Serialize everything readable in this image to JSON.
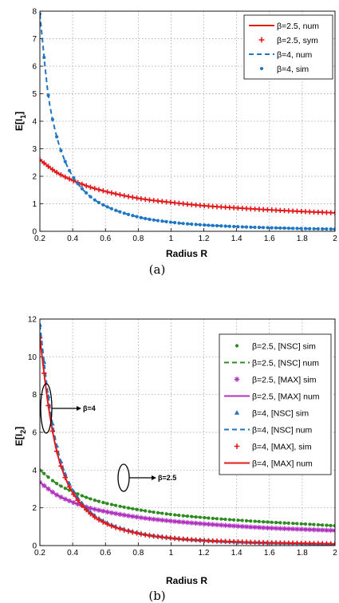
{
  "chart_data": [
    {
      "type": "line",
      "caption": "(a)",
      "ylabel": "E[I",
      "ylabel_sub": "1",
      "ylabel_close": "]",
      "xlabel": "Radius R",
      "xlim": [
        0.2,
        2
      ],
      "ylim": [
        0,
        8
      ],
      "xticks": [
        "0.2",
        "0.4",
        "0.6",
        "0.8",
        "1",
        "1.2",
        "1.4",
        "1.6",
        "1.8",
        "2"
      ],
      "yticks": [
        "0",
        "1",
        "2",
        "3",
        "4",
        "5",
        "6",
        "7",
        "8"
      ],
      "grid": true,
      "legend_position": "top-right",
      "series": [
        {
          "name": "β=2.5, num",
          "color": "#e31a1c",
          "style": "line",
          "x": [
            0.2,
            0.3,
            0.4,
            0.5,
            0.6,
            0.8,
            1.0,
            1.2,
            1.4,
            1.6,
            1.8,
            2.0
          ],
          "y": [
            2.6,
            2.15,
            1.85,
            1.62,
            1.45,
            1.2,
            1.05,
            0.93,
            0.85,
            0.78,
            0.72,
            0.67
          ]
        },
        {
          "name": "β=2.5, sym",
          "color": "#e31a1c",
          "style": "plus",
          "x": [
            0.2,
            0.3,
            0.4,
            0.5,
            0.6,
            0.8,
            1.0,
            1.2,
            1.4,
            1.6,
            1.8,
            2.0
          ],
          "y": [
            2.6,
            2.15,
            1.85,
            1.62,
            1.45,
            1.2,
            1.05,
            0.93,
            0.85,
            0.78,
            0.72,
            0.67
          ]
        },
        {
          "name": "β=4, num",
          "color": "#1f77c4",
          "style": "dashed",
          "x": [
            0.2,
            0.25,
            0.3,
            0.35,
            0.4,
            0.5,
            0.6,
            0.8,
            1.0,
            1.2,
            1.4,
            1.6,
            1.8,
            2.0
          ],
          "y": [
            7.9,
            5.0,
            3.5,
            2.6,
            2.0,
            1.3,
            0.92,
            0.52,
            0.33,
            0.23,
            0.17,
            0.13,
            0.1,
            0.08
          ]
        },
        {
          "name": "β=4, sim",
          "color": "#1f77c4",
          "style": "dot",
          "x": [
            0.2,
            0.25,
            0.3,
            0.35,
            0.4,
            0.5,
            0.6,
            0.8,
            1.0,
            1.2,
            1.4,
            1.6,
            1.8,
            2.0
          ],
          "y": [
            7.9,
            5.0,
            3.5,
            2.6,
            2.0,
            1.3,
            0.92,
            0.52,
            0.33,
            0.23,
            0.17,
            0.13,
            0.1,
            0.08
          ]
        }
      ]
    },
    {
      "type": "line",
      "caption": "(b)",
      "ylabel": "E[I",
      "ylabel_sub": "2",
      "ylabel_close": "]",
      "xlabel": "Radius R",
      "xlim": [
        0.2,
        2
      ],
      "ylim": [
        0,
        12
      ],
      "xticks": [
        "0.2",
        "0.4",
        "0.6",
        "0.8",
        "1",
        "1.2",
        "1.4",
        "1.6",
        "1.8",
        "2"
      ],
      "yticks": [
        "0",
        "2",
        "4",
        "6",
        "8",
        "10",
        "12"
      ],
      "grid": true,
      "legend_position": "top-right",
      "annotations": [
        "β=4",
        "β=2.5"
      ],
      "series": [
        {
          "name": "β=2.5, [NSC] sim",
          "color": "#2e8b20",
          "style": "dot",
          "x": [
            0.2,
            0.3,
            0.4,
            0.5,
            0.6,
            0.8,
            1.0,
            1.2,
            1.4,
            1.6,
            1.8,
            2.0
          ],
          "y": [
            4.0,
            3.3,
            2.85,
            2.5,
            2.25,
            1.9,
            1.65,
            1.48,
            1.35,
            1.24,
            1.15,
            1.05
          ]
        },
        {
          "name": "β=2.5, [NSC] num",
          "color": "#2e8b20",
          "style": "dashed",
          "x": [
            0.2,
            0.3,
            0.4,
            0.5,
            0.6,
            0.8,
            1.0,
            1.2,
            1.4,
            1.6,
            1.8,
            2.0
          ],
          "y": [
            4.0,
            3.3,
            2.85,
            2.5,
            2.25,
            1.9,
            1.65,
            1.48,
            1.35,
            1.24,
            1.15,
            1.05
          ]
        },
        {
          "name": "β=2.5, [MAX] sim",
          "color": "#b030c0",
          "style": "star",
          "x": [
            0.2,
            0.3,
            0.4,
            0.5,
            0.6,
            0.8,
            1.0,
            1.2,
            1.4,
            1.6,
            1.8,
            2.0
          ],
          "y": [
            3.35,
            2.7,
            2.3,
            2.0,
            1.8,
            1.5,
            1.3,
            1.15,
            1.03,
            0.93,
            0.86,
            0.8
          ]
        },
        {
          "name": "β=2.5, [MAX] num",
          "color": "#b030c0",
          "style": "line",
          "x": [
            0.2,
            0.3,
            0.4,
            0.5,
            0.6,
            0.8,
            1.0,
            1.2,
            1.4,
            1.6,
            1.8,
            2.0
          ],
          "y": [
            3.35,
            2.7,
            2.3,
            2.0,
            1.8,
            1.5,
            1.3,
            1.15,
            1.03,
            0.93,
            0.86,
            0.8
          ]
        },
        {
          "name": "β=4, [NSC] sim",
          "color": "#1f77c4",
          "style": "triangle",
          "x": [
            0.2,
            0.25,
            0.3,
            0.35,
            0.4,
            0.5,
            0.6,
            0.8,
            1.0,
            1.2,
            1.4,
            1.6,
            1.8,
            2.0
          ],
          "y": [
            11.7,
            8.0,
            5.4,
            3.9,
            2.95,
            1.85,
            1.25,
            0.68,
            0.42,
            0.29,
            0.21,
            0.16,
            0.13,
            0.1
          ]
        },
        {
          "name": "β=4, [NSC] num",
          "color": "#1f77c4",
          "style": "dashed",
          "x": [
            0.2,
            0.25,
            0.3,
            0.35,
            0.4,
            0.5,
            0.6,
            0.8,
            1.0,
            1.2,
            1.4,
            1.6,
            1.8,
            2.0
          ],
          "y": [
            11.7,
            8.0,
            5.4,
            3.9,
            2.95,
            1.85,
            1.25,
            0.68,
            0.42,
            0.29,
            0.21,
            0.16,
            0.13,
            0.1
          ]
        },
        {
          "name": "β=4, [MAX], sim",
          "color": "#e31a1c",
          "style": "plus",
          "x": [
            0.2,
            0.25,
            0.3,
            0.35,
            0.4,
            0.5,
            0.6,
            0.8,
            1.0,
            1.2,
            1.4,
            1.6,
            1.8,
            2.0
          ],
          "y": [
            11.0,
            7.5,
            5.1,
            3.7,
            2.8,
            1.75,
            1.18,
            0.64,
            0.4,
            0.27,
            0.2,
            0.15,
            0.12,
            0.09
          ]
        },
        {
          "name": "β=4, [MAX] num",
          "color": "#e31a1c",
          "style": "line",
          "x": [
            0.2,
            0.25,
            0.3,
            0.35,
            0.4,
            0.5,
            0.6,
            0.8,
            1.0,
            1.2,
            1.4,
            1.6,
            1.8,
            2.0
          ],
          "y": [
            11.0,
            7.5,
            5.1,
            3.7,
            2.8,
            1.75,
            1.18,
            0.64,
            0.4,
            0.27,
            0.2,
            0.15,
            0.12,
            0.09
          ]
        }
      ]
    }
  ]
}
